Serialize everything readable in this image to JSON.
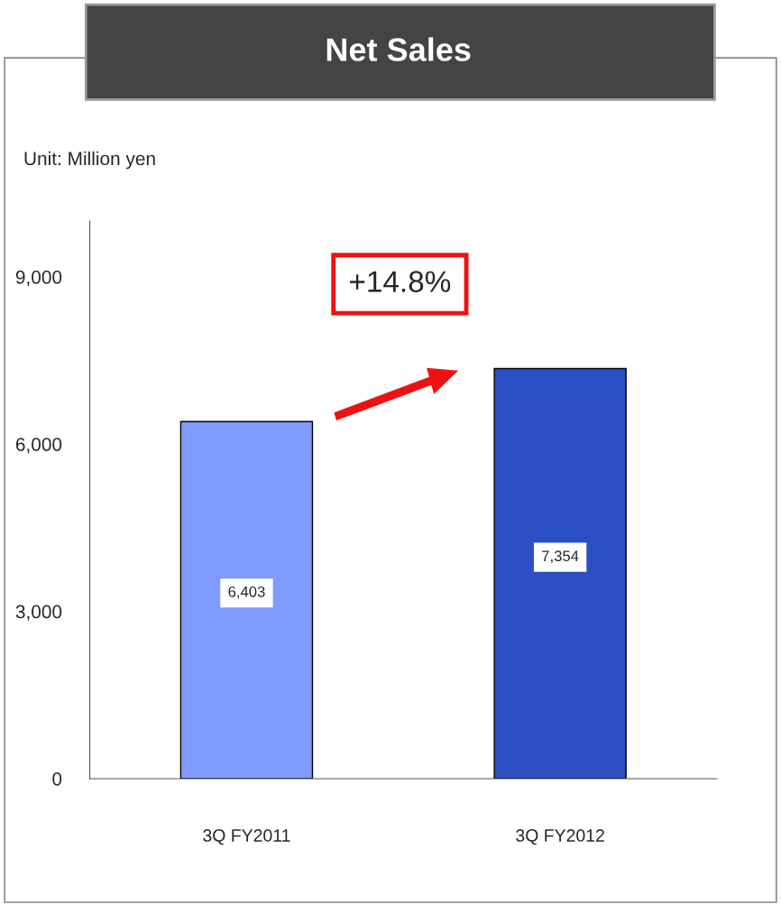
{
  "chart_data": {
    "type": "bar",
    "title": "Net Sales",
    "categories": [
      "3Q FY2011",
      "3Q FY2012"
    ],
    "values": [
      6403,
      7354
    ],
    "colors": [
      "#7f9bff",
      "#2b4fc4"
    ],
    "value_labels": [
      "6,403",
      "7,354"
    ],
    "ylim": [
      0,
      10000
    ],
    "yticks": [
      0,
      {
        "value": 3000,
        "label": "3,000"
      },
      {
        "value": 6000,
        "label": "6,000"
      },
      {
        "value": 9000,
        "label": "9,000"
      }
    ],
    "annotations": [
      "Unit: Million yen",
      "+14.8%"
    ],
    "grid": false,
    "legend": false
  }
}
